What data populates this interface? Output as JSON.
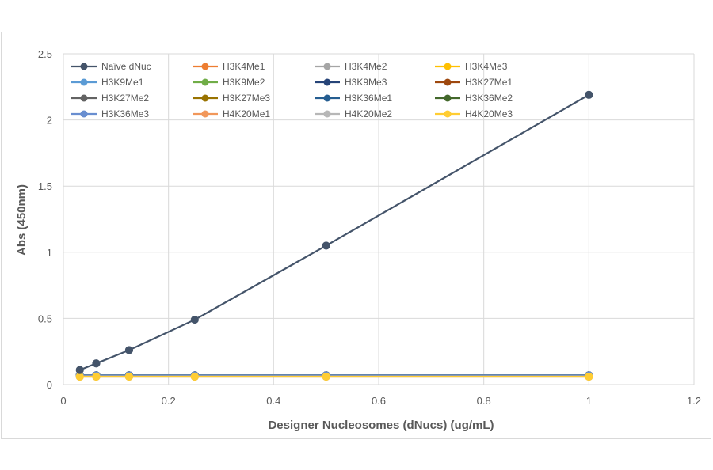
{
  "chart_data": {
    "type": "line",
    "title": "",
    "xlabel": "Designer Nucleosomes (dNucs) (ug/mL)",
    "ylabel": "Abs (450nm)",
    "xlim": [
      0,
      1.2
    ],
    "ylim": [
      0,
      2.5
    ],
    "xticks": [
      0,
      0.2,
      0.4,
      0.6,
      0.8,
      1,
      1.2
    ],
    "yticks": [
      0,
      0.5,
      1,
      1.5,
      2,
      2.5
    ],
    "xtick_labels": [
      "0",
      "0.2",
      "0.4",
      "0.6",
      "0.8",
      "1",
      "1.2"
    ],
    "ytick_labels": [
      "0",
      "0.5",
      "1",
      "1.5",
      "2",
      "2.5"
    ],
    "grid": true,
    "legend_position": "top-left",
    "x": [
      0.03125,
      0.0625,
      0.125,
      0.25,
      0.5,
      1
    ],
    "series": [
      {
        "name": "Naïve dNuc",
        "color": "#44546a",
        "values": [
          0.11,
          0.16,
          0.26,
          0.49,
          1.05,
          2.19
        ]
      },
      {
        "name": "H3K4Me1",
        "color": "#ed7d31",
        "values": [
          0.07,
          0.07,
          0.07,
          0.07,
          0.07,
          0.07
        ]
      },
      {
        "name": "H3K4Me2",
        "color": "#a5a5a5",
        "values": [
          0.07,
          0.07,
          0.07,
          0.07,
          0.07,
          0.07
        ]
      },
      {
        "name": "H3K4Me3",
        "color": "#ffc000",
        "values": [
          0.07,
          0.07,
          0.07,
          0.07,
          0.07,
          0.07
        ]
      },
      {
        "name": "H3K9Me1",
        "color": "#5b9bd5",
        "values": [
          0.07,
          0.07,
          0.07,
          0.07,
          0.07,
          0.07
        ]
      },
      {
        "name": "H3K9Me2",
        "color": "#70ad47",
        "values": [
          0.07,
          0.07,
          0.07,
          0.07,
          0.07,
          0.07
        ]
      },
      {
        "name": "H3K9Me3",
        "color": "#264478",
        "values": [
          0.07,
          0.07,
          0.07,
          0.07,
          0.07,
          0.07
        ]
      },
      {
        "name": "H3K27Me1",
        "color": "#9e480e",
        "values": [
          0.07,
          0.07,
          0.07,
          0.07,
          0.07,
          0.07
        ]
      },
      {
        "name": "H3K27Me2",
        "color": "#636363",
        "values": [
          0.07,
          0.07,
          0.07,
          0.07,
          0.07,
          0.07
        ]
      },
      {
        "name": "H3K27Me3",
        "color": "#997300",
        "values": [
          0.07,
          0.07,
          0.07,
          0.07,
          0.07,
          0.07
        ]
      },
      {
        "name": "H3K36Me1",
        "color": "#255e91",
        "values": [
          0.07,
          0.07,
          0.07,
          0.07,
          0.07,
          0.07
        ]
      },
      {
        "name": "H3K36Me2",
        "color": "#43682b",
        "values": [
          0.07,
          0.07,
          0.07,
          0.07,
          0.07,
          0.07
        ]
      },
      {
        "name": "H3K36Me3",
        "color": "#698ed0",
        "values": [
          0.07,
          0.07,
          0.07,
          0.07,
          0.07,
          0.07
        ]
      },
      {
        "name": "H4K20Me1",
        "color": "#f1975a",
        "values": [
          0.06,
          0.06,
          0.06,
          0.06,
          0.06,
          0.06
        ]
      },
      {
        "name": "H4K20Me2",
        "color": "#b7b7b7",
        "values": [
          0.06,
          0.06,
          0.06,
          0.06,
          0.06,
          0.06
        ]
      },
      {
        "name": "H4K20Me3",
        "color": "#ffcd33",
        "values": [
          0.06,
          0.06,
          0.06,
          0.06,
          0.06,
          0.06
        ]
      }
    ]
  }
}
